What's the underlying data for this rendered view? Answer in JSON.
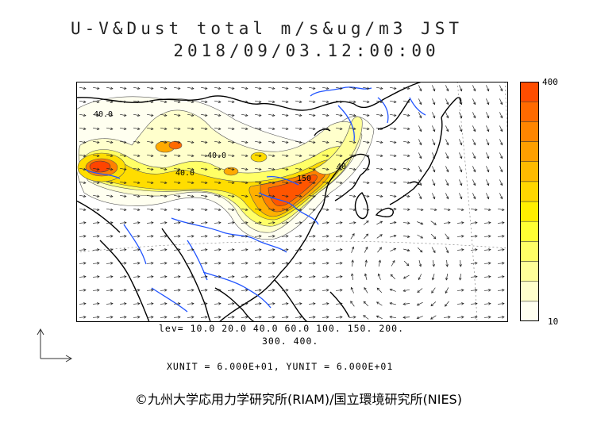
{
  "title": {
    "line1": "U-V&Dust total m/s&ug/m3 JST",
    "line2": "2018/09/03.12:00:00"
  },
  "colorbar": {
    "max_label": "400",
    "min_label": "10",
    "colors": [
      "#fffff0",
      "#ffffcc",
      "#ffff99",
      "#ffff66",
      "#ffff33",
      "#ffee00",
      "#ffd700",
      "#ffbb00",
      "#ff9f00",
      "#ff8500",
      "#ff6a00",
      "#ff4d00"
    ]
  },
  "contour_labels": [
    "40.0",
    "40.0",
    "40.0",
    "150",
    "40"
  ],
  "levels": {
    "line1": "lev= 10.0 20.0 40.0 60.0 100. 150. 200.",
    "line2": "300. 400."
  },
  "units": "XUNIT = 6.000E+01, YUNIT = 6.000E+01",
  "credit": "©九州大学応用力学研究所(RIAM)/国立環境研究所(NIES)",
  "colors": {
    "coastline": "#000000",
    "rivers": "#2255ff",
    "high_dust": "#ff5500"
  }
}
